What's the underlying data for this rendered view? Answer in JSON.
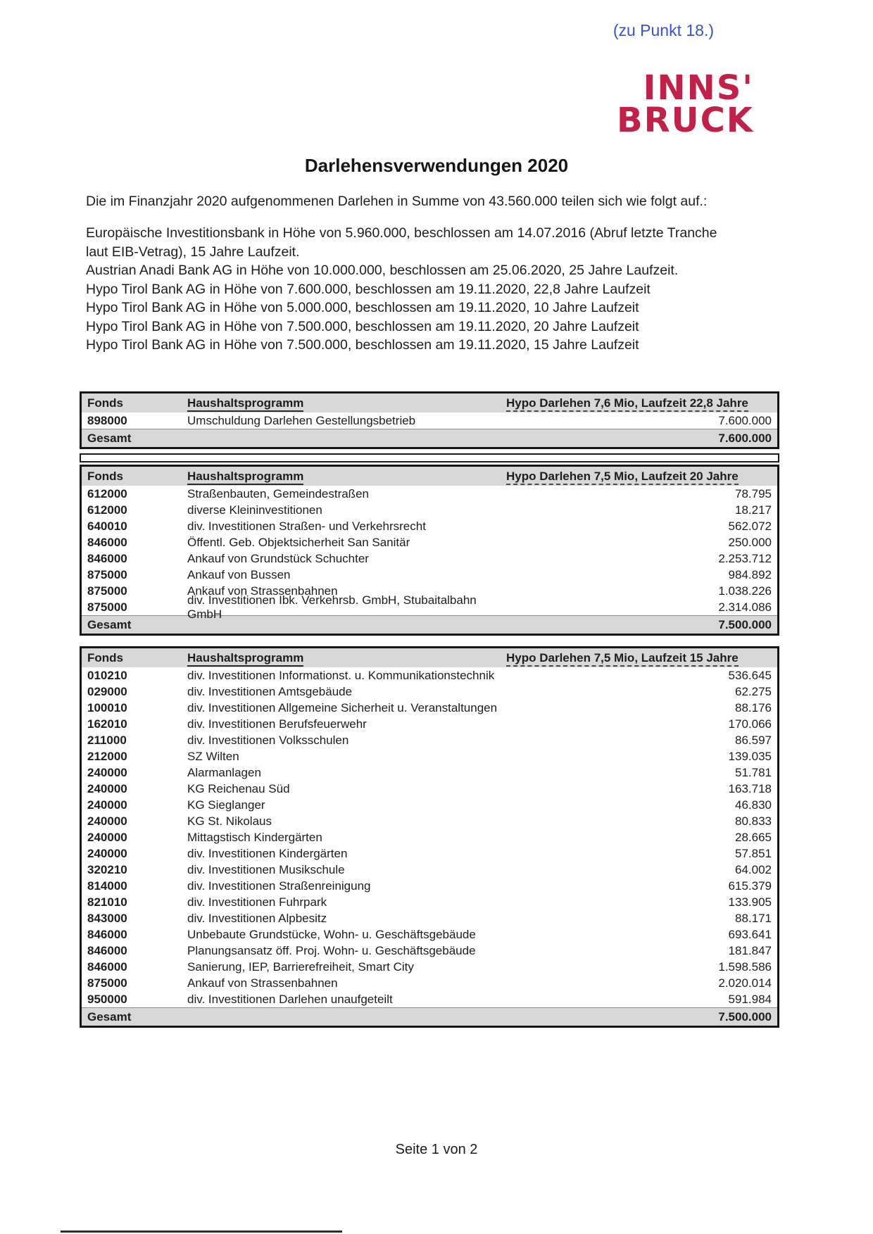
{
  "document": {
    "reference_note": "(zu Punkt 18.)",
    "logo": {
      "line1": "INNS'",
      "line2": "BRUCK"
    },
    "title": "Darlehensverwendungen 2020",
    "intro": "Die im Finanzjahr 2020 aufgenommenen Darlehen in Summe von 43.560.000 teilen sich wie folgt auf.:",
    "loan_list": [
      "Europäische Investitionsbank in Höhe von 5.960.000, beschlossen am 14.07.2016 (Abruf letzte Tranche laut EIB-Vetrag), 15 Jahre Laufzeit.",
      "Austrian Anadi Bank AG in Höhe von 10.000.000, beschlossen am 25.06.2020, 25 Jahre Laufzeit.",
      "Hypo Tirol Bank AG in Höhe von 7.600.000, beschlossen am 19.11.2020, 22,8 Jahre Laufzeit",
      "Hypo Tirol Bank AG in Höhe von 5.000.000, beschlossen am 19.11.2020, 10 Jahre Laufzeit",
      "Hypo Tirol Bank AG in Höhe von 7.500.000, beschlossen am 19.11.2020, 20 Jahre Laufzeit",
      "Hypo Tirol Bank AG in Höhe von 7.500.000, beschlossen am 19.11.2020, 15 Jahre Laufzeit"
    ],
    "footer": "Seite 1 von 2"
  },
  "colors": {
    "accent_blue": "#3a51d4",
    "brand_red": "#c22048",
    "table_header_gray": "#d8d8d8"
  },
  "tables": [
    {
      "headers": {
        "fonds": "Fonds",
        "program": "Haushaltsprogramm",
        "amount": "Hypo Darlehen 7,6 Mio, Laufzeit 22,8 Jahre"
      },
      "rows": [
        {
          "fonds": "898000",
          "program": "Umschuldung Darlehen Gestellungsbetrieb",
          "amount": "7.600.000"
        }
      ],
      "total": {
        "label": "Gesamt",
        "amount": "7.600.000"
      }
    },
    {
      "headers": {
        "fonds": "Fonds",
        "program": "Haushaltsprogramm",
        "amount": "Hypo Darlehen 7,5 Mio, Laufzeit 20 Jahre"
      },
      "rows": [
        {
          "fonds": "612000",
          "program": "Straßenbauten, Gemeindestraßen",
          "amount": "78.795"
        },
        {
          "fonds": "612000",
          "program": "diverse Kleininvestitionen",
          "amount": "18.217"
        },
        {
          "fonds": "640010",
          "program": "div. Investitionen Straßen- und Verkehrsrecht",
          "amount": "562.072"
        },
        {
          "fonds": "846000",
          "program": "Öffentl. Geb. Objektsicherheit San Sanitär",
          "amount": "250.000"
        },
        {
          "fonds": "846000",
          "program": "Ankauf von Grundstück Schuchter",
          "amount": "2.253.712"
        },
        {
          "fonds": "875000",
          "program": "Ankauf von Bussen",
          "amount": "984.892"
        },
        {
          "fonds": "875000",
          "program": "Ankauf von Strassenbahnen",
          "amount": "1.038.226"
        },
        {
          "fonds": "875000",
          "program": "div. Investitionen Ibk. Verkehrsb. GmbH, Stubaitalbahn GmbH",
          "amount": "2.314.086"
        }
      ],
      "total": {
        "label": "Gesamt",
        "amount": "7.500.000"
      }
    },
    {
      "headers": {
        "fonds": "Fonds",
        "program": "Haushaltsprogramm",
        "amount": "Hypo Darlehen 7,5 Mio, Laufzeit 15 Jahre"
      },
      "rows": [
        {
          "fonds": "010210",
          "program": "div. Investitionen Informationst. u. Kommunikationstechnik",
          "amount": "536.645"
        },
        {
          "fonds": "029000",
          "program": "div. Investitionen Amtsgebäude",
          "amount": "62.275"
        },
        {
          "fonds": "100010",
          "program": "div. Investitionen Allgemeine Sicherheit u. Veranstaltungen",
          "amount": "88.176"
        },
        {
          "fonds": "162010",
          "program": "div. Investitionen Berufsfeuerwehr",
          "amount": "170.066"
        },
        {
          "fonds": "211000",
          "program": "div. Investitionen Volksschulen",
          "amount": "86.597"
        },
        {
          "fonds": "212000",
          "program": "SZ Wilten",
          "amount": "139.035"
        },
        {
          "fonds": "240000",
          "program": "Alarmanlagen",
          "amount": "51.781"
        },
        {
          "fonds": "240000",
          "program": "KG Reichenau Süd",
          "amount": "163.718"
        },
        {
          "fonds": "240000",
          "program": "KG Sieglanger",
          "amount": "46.830"
        },
        {
          "fonds": "240000",
          "program": "KG St. Nikolaus",
          "amount": "80.833"
        },
        {
          "fonds": "240000",
          "program": "Mittagstisch Kindergärten",
          "amount": "28.665"
        },
        {
          "fonds": "240000",
          "program": "div. Investitionen Kindergärten",
          "amount": "57.851"
        },
        {
          "fonds": "320210",
          "program": "div. Investitionen Musikschule",
          "amount": "64.002"
        },
        {
          "fonds": "814000",
          "program": "div. Investitionen Straßenreinigung",
          "amount": "615.379"
        },
        {
          "fonds": "821010",
          "program": "div. Investitionen Fuhrpark",
          "amount": "133.905"
        },
        {
          "fonds": "843000",
          "program": "div. Investitionen Alpbesitz",
          "amount": "88.171"
        },
        {
          "fonds": "846000",
          "program": "Unbebaute Grundstücke, Wohn- u. Geschäftsgebäude",
          "amount": "693.641"
        },
        {
          "fonds": "846000",
          "program": "Planungsansatz öff. Proj. Wohn- u. Geschäftsgebäude",
          "amount": "181.847"
        },
        {
          "fonds": "846000",
          "program": "Sanierung, IEP, Barrierefreiheit, Smart City",
          "amount": "1.598.586"
        },
        {
          "fonds": "875000",
          "program": "Ankauf von Strassenbahnen",
          "amount": "2.020.014"
        },
        {
          "fonds": "950000",
          "program": "div. Investitionen Darlehen unaufgeteilt",
          "amount": "591.984"
        }
      ],
      "total": {
        "label": "Gesamt",
        "amount": "7.500.000"
      }
    }
  ]
}
